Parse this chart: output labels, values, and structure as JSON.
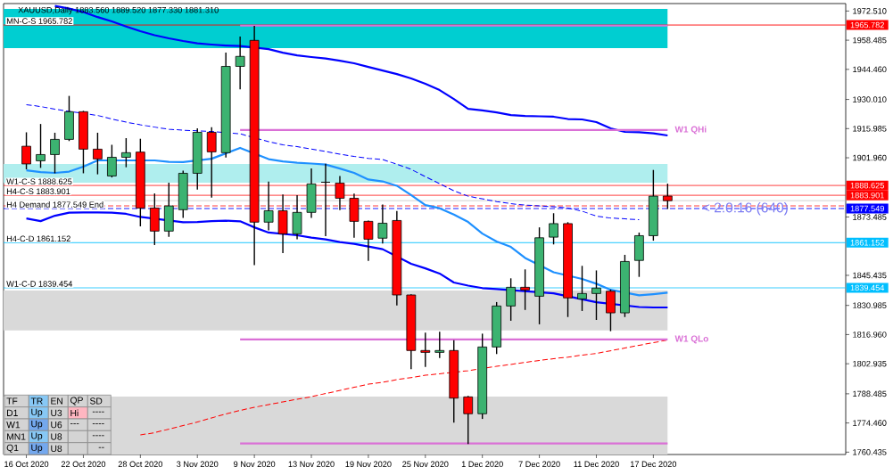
{
  "chart_data": {
    "type": "candlestick",
    "title": "XAUUSD,Daily 1883.560 1889.520 1877.330 1881.310",
    "categories": [
      "16 Oct 2020",
      null,
      null,
      null,
      "22 Oct 2020",
      null,
      null,
      null,
      "28 Oct 2020",
      null,
      null,
      null,
      "3 Nov 2020",
      null,
      null,
      null,
      "9 Nov 2020",
      null,
      null,
      null,
      "13 Nov 2020",
      null,
      null,
      null,
      "19 Nov 2020",
      null,
      null,
      null,
      "25 Nov 2020",
      null,
      null,
      null,
      "1 Dec 2020",
      null,
      null,
      null,
      "7 Dec 2020",
      null,
      null,
      null,
      "11 Dec 2020",
      null,
      null,
      null,
      "17 Dec 2020",
      null
    ],
    "ohlc": [
      [
        1907.5,
        1914.2,
        1896.4,
        1899.0
      ],
      [
        1900.5,
        1918.2,
        1897.1,
        1903.5
      ],
      [
        1903.5,
        1914.0,
        1894.5,
        1910.8
      ],
      [
        1910.8,
        1931.7,
        1910.0,
        1924.1
      ],
      [
        1924.1,
        1924.5,
        1894.5,
        1906.1
      ],
      [
        1906.1,
        1914.0,
        1894.0,
        1901.4
      ],
      [
        1893.2,
        1908.2,
        1892.5,
        1902.2
      ],
      [
        1902.2,
        1911.4,
        1897.4,
        1904.4
      ],
      [
        1904.7,
        1911.1,
        1869.0,
        1877.8
      ],
      [
        1877.8,
        1884.8,
        1860.0,
        1866.7
      ],
      [
        1866.7,
        1890.0,
        1864.0,
        1878.8
      ],
      [
        1877.0,
        1895.8,
        1873.1,
        1894.5
      ],
      [
        1894.5,
        1916.1,
        1886.7,
        1914.2
      ],
      [
        1914.2,
        1916.7,
        1882.8,
        1904.8
      ],
      [
        1904.4,
        1952.5,
        1902.1,
        1945.9
      ],
      [
        1945.9,
        1960.2,
        1934.9,
        1950.7
      ],
      [
        1958.4,
        1965.4,
        1850.3,
        1871.0
      ],
      [
        1871.0,
        1890.5,
        1867.1,
        1876.5
      ],
      [
        1876.5,
        1884.3,
        1856.1,
        1865.4
      ],
      [
        1865.4,
        1884.0,
        1862.8,
        1875.7
      ],
      [
        1875.7,
        1896.8,
        1873.1,
        1889.4
      ],
      [
        1890.2,
        1899.1,
        1864.3,
        1890.2
      ],
      [
        1889.8,
        1893.2,
        1876.8,
        1882.5
      ],
      [
        1882.5,
        1884.7,
        1863.5,
        1871.4
      ],
      [
        1871.4,
        1871.8,
        1852.4,
        1862.8
      ],
      [
        1863.3,
        1879.5,
        1860.7,
        1870.5
      ],
      [
        1871.8,
        1876.4,
        1831.0,
        1836.0
      ],
      [
        1836.0,
        1836.3,
        1800.3,
        1809.3
      ],
      [
        1809.3,
        1817.9,
        1801.4,
        1808.4
      ],
      [
        1808.4,
        1818.3,
        1805.7,
        1809.3
      ],
      [
        1809.3,
        1814.3,
        1774.6,
        1786.4
      ],
      [
        1787.0,
        1787.5,
        1764.3,
        1778.9
      ],
      [
        1778.9,
        1817.4,
        1776.4,
        1811.0
      ],
      [
        1811.0,
        1832.6,
        1807.6,
        1830.7
      ],
      [
        1830.7,
        1844.0,
        1823.6,
        1839.7
      ],
      [
        1839.7,
        1848.3,
        1828.8,
        1838.4
      ],
      [
        1835.4,
        1868.5,
        1821.9,
        1863.5
      ],
      [
        1863.8,
        1875.3,
        1860.3,
        1870.3
      ],
      [
        1870.3,
        1871.0,
        1825.4,
        1834.6
      ],
      [
        1834.1,
        1850.0,
        1828.3,
        1836.7
      ],
      [
        1836.7,
        1847.8,
        1824.0,
        1839.3
      ],
      [
        1837.8,
        1838.6,
        1818.6,
        1827.4
      ],
      [
        1827.4,
        1855.3,
        1825.4,
        1852.1
      ],
      [
        1852.6,
        1866.0,
        1844.7,
        1864.5
      ],
      [
        1864.5,
        1896.1,
        1862.1,
        1883.5
      ],
      [
        1883.56,
        1889.52,
        1877.33,
        1881.31
      ]
    ],
    "colors": [
      "#ff0000",
      "#3cb371",
      "#3cb371",
      "#3cb371",
      "#ff0000",
      "#ff0000",
      "#3cb371",
      "#3cb371",
      "#ff0000",
      "#ff0000",
      "#3cb371",
      "#3cb371",
      "#3cb371",
      "#ff0000",
      "#3cb371",
      "#3cb371",
      "#ff0000",
      "#3cb371",
      "#ff0000",
      "#3cb371",
      "#3cb371",
      "#000000",
      "#ff0000",
      "#ff0000",
      "#ff0000",
      "#3cb371",
      "#ff0000",
      "#ff0000",
      "#ff0000",
      "#3cb371",
      "#ff0000",
      "#ff0000",
      "#3cb371",
      "#3cb371",
      "#3cb371",
      "#ff0000",
      "#3cb371",
      "#3cb371",
      "#ff0000",
      "#3cb371",
      "#3cb371",
      "#ff0000",
      "#3cb371",
      "#3cb371",
      "#3cb371",
      "#ff0000"
    ],
    "ylim": [
      1759.3,
      1976.1
    ],
    "yticks": [
      {
        "value": 1972.51,
        "label": "1972.510"
      },
      1958.485,
      {
        "value": 1944.46,
        "label": "1944.460"
      },
      {
        "value": 1930.01,
        "label": "1930.010"
      },
      1915.985,
      {
        "value": 1901.96,
        "label": "1901.960"
      },
      1873.485,
      1845.435,
      1830.985,
      {
        "value": 1816.96,
        "label": "1816.960"
      },
      1802.935,
      1788.485,
      {
        "value": 1774.46,
        "label": "1774.460"
      },
      1760.435
    ],
    "series": [
      {
        "type": "line",
        "color": "#0000ff",
        "values": [
          null,
          null,
          1975.0,
          1973.7,
          1972.0,
          1969.6,
          1967.5,
          1965.1,
          1962.8,
          1960.9,
          1959.4,
          1958.1,
          1957.0,
          1956.4,
          1955.9,
          1955.7,
          null,
          1954.2,
          1952.5,
          1951.2,
          1950.4,
          1949.7,
          1948.6,
          1947.4,
          1945.6,
          1943.9,
          1942.2,
          1940.1,
          1937.5,
          1934.5,
          1930.2,
          1925.5,
          1924.7,
          1923.8,
          1922.5,
          1922.1,
          1921.9,
          1921.7,
          1920.6,
          1920.4,
          1919.1,
          1916.1,
          1914.4,
          1914.2,
          1913.7,
          1912.7
        ]
      },
      {
        "type": "line",
        "color": "#0000ff",
        "values": [
          1872.8,
          1871.5,
          1874.1,
          1875.6,
          1875.7,
          1875.7,
          1875.6,
          1875.0,
          1873.5,
          null,
          null,
          1871.0,
          1871.1,
          1871.5,
          1871.7,
          1871.4,
          1868.5,
          1866.0,
          null,
          1864.7,
          1863.6,
          1862.7,
          1861.4,
          1860.6,
          1859.3,
          1858.0,
          null,
          1851.0,
          1848.8,
          1846.3,
          1842.0,
          1840.5,
          1839.3,
          1838.8,
          null,
          null,
          null,
          1836.8,
          null,
          null,
          1832.5,
          null,
          null,
          1830.2,
          1830.0,
          1830.0
        ]
      },
      {
        "type": "line",
        "color": "#1e90ff",
        "values": [
          1895.9,
          1895.1,
          1894.7,
          1895.3,
          1897.7,
          1900.7,
          null,
          null,
          null,
          1900.7,
          1900.0,
          1899.9,
          null,
          1901.5,
          null,
          1906.7,
          null,
          1901.3,
          1900.2,
          1899.6,
          1899.2,
          1898.7,
          1896.8,
          1894.7,
          1891.5,
          1890.6,
          1888.5,
          1884.0,
          1879.2,
          1877.7,
          1874.7,
          1871.1,
          1865.5,
          1861.7,
          1859.1,
          1853.8,
          null,
          1846.9,
          null,
          1843.7,
          1841.4,
          1838.5,
          null,
          1835.8,
          1836.4,
          1837.1
        ]
      },
      {
        "type": "line",
        "color": "#0000ff",
        "line_style": "dashed",
        "values": [
          1927.5,
          1926.6,
          1925.3,
          null,
          null,
          1922.3,
          1920.6,
          1919.1,
          1917.8,
          1916.7,
          1915.7,
          1915.2,
          1914.9,
          1914.6,
          null,
          1913.5,
          null,
          1909.7,
          1908.2,
          1907.3,
          1906.2,
          1905.0,
          1903.7,
          1902.6,
          1901.7,
          1901.1,
          1898.9,
          1896.4,
          1892.9,
          1889.5,
          1886.1,
          1883.5,
          1882.2,
          1880.9,
          1879.9,
          1879.2,
          1878.8,
          1878.4,
          1877.8,
          1876.3,
          1873.9,
          1873.0,
          1872.6,
          1872.2,
          null,
          null
        ]
      },
      {
        "type": "line",
        "color": "#ff0000",
        "line_style": "dashed",
        "values": [
          null,
          null,
          null,
          null,
          null,
          null,
          null,
          null,
          1768.7,
          1769.8,
          1771.5,
          1773.2,
          1774.9,
          1776.9,
          1778.8,
          1780.5,
          1782.0,
          1783.3,
          1784.6,
          1785.9,
          1787.1,
          1788.6,
          1790.1,
          1791.6,
          1793.1,
          1794.0,
          1795.3,
          1796.3,
          1797.4,
          1798.1,
          null,
          1799.6,
          null,
          1801.7,
          1802.6,
          1803.6,
          1804.5,
          1805.4,
          1806.1,
          1807.1,
          1807.9,
          1809.2,
          1810.5,
          1811.8,
          1813.1,
          1814.3
        ]
      },
      {
        "type": "line",
        "color": "#da70d6",
        "values": [
          null,
          null,
          null,
          null,
          null,
          null,
          null,
          null,
          null,
          null,
          null,
          null,
          null,
          null,
          null,
          1965.5,
          1965.5,
          1965.5,
          1965.5,
          1965.5,
          1965.5,
          1965.5,
          1965.5,
          1965.5,
          1965.5,
          1965.5,
          1965.5,
          1965.5,
          1965.5,
          1965.5,
          1965.5,
          1965.5,
          1965.5,
          1965.5,
          1965.5,
          1965.5,
          1965.5,
          1965.5,
          1965.5,
          1965.5,
          1965.5,
          1965.5,
          1965.5,
          1965.5,
          1965.5,
          1965.5
        ]
      },
      {
        "type": "line",
        "name": "W1 QHi",
        "color": "#da70d6",
        "values": [
          null,
          null,
          null,
          null,
          null,
          null,
          null,
          null,
          null,
          null,
          null,
          null,
          null,
          null,
          null,
          1915.3,
          null,
          1915.3,
          1915.3,
          1915.3,
          1915.3,
          1915.3,
          1915.3,
          1915.3,
          1915.3,
          1915.3,
          1915.3,
          1915.3,
          1915.3,
          1915.3,
          1915.3,
          1915.3,
          1915.3,
          1915.3,
          1915.3,
          1915.3,
          1915.3,
          1915.3,
          1915.3,
          1915.3,
          1915.3,
          1915.3,
          1915.3,
          1915.3,
          1915.3,
          1915.3
        ]
      },
      {
        "type": "line",
        "name": "W1 QLo",
        "color": "#da70d6",
        "values": [
          null,
          null,
          null,
          null,
          null,
          null,
          null,
          null,
          null,
          null,
          null,
          null,
          null,
          null,
          null,
          1814.6,
          1814.6,
          1814.6,
          1814.6,
          1814.6,
          1814.6,
          1814.6,
          1814.6,
          1814.6,
          1814.6,
          1814.6,
          1814.6,
          null,
          1814.6,
          1814.6,
          1814.6,
          1814.6,
          1814.6,
          null,
          1814.6,
          1814.6,
          1814.6,
          1814.6,
          1814.6,
          1814.6,
          1814.6,
          1814.6,
          1814.6,
          1814.6,
          1814.6,
          1814.6
        ]
      },
      {
        "type": "line",
        "color": "#da70d6",
        "values": [
          null,
          null,
          null,
          null,
          null,
          null,
          null,
          null,
          null,
          null,
          null,
          null,
          null,
          null,
          null,
          1764.6,
          1764.6,
          1764.6,
          1764.6,
          1764.6,
          1764.6,
          1764.6,
          1764.6,
          1764.6,
          1764.6,
          1764.6,
          1764.6,
          1764.6,
          1764.6,
          1764.6,
          1764.6,
          1764.6,
          1764.6,
          1764.6,
          1764.6,
          1764.6,
          1764.6,
          1764.6,
          1764.6,
          1764.6,
          1764.6,
          1764.6,
          1764.6,
          1764.6,
          1764.6,
          1764.6
        ]
      }
    ],
    "ref_lines": [
      {
        "axis": "y",
        "value": 1965.782,
        "label": "MN-C-S 1965.782",
        "color": "#ff0000"
      },
      {
        "axis": "y",
        "value": 1888.625,
        "label": "W1-C-S 1888.625",
        "color": "#ff0000"
      },
      {
        "axis": "y",
        "value": 1883.901,
        "label": "H4-C-S 1883.901",
        "color": "#ff0000"
      },
      {
        "axis": "y",
        "value": 1881.31,
        "color": "#c0c0c0"
      },
      {
        "axis": "y",
        "value": 1878.8,
        "color": "#ff0000",
        "line_style": "dashed"
      },
      {
        "axis": "y",
        "value": 1877.549,
        "label": "H4 Demand 1877.549 End",
        "color": "#0000ff",
        "line_style": "dashed"
      },
      {
        "axis": "y",
        "value": 1861.152,
        "label": "H4-C-D 1861.152",
        "color": "#00bfff"
      },
      {
        "axis": "y",
        "value": 1839.454,
        "label": "W1-C-D 1839.454",
        "color": "#00bfff"
      }
    ],
    "bands": [
      {
        "axis": "y",
        "from": 1954.7,
        "to": 1973.5,
        "color": "#00ced1"
      },
      {
        "axis": "y",
        "from": 1890.0,
        "to": 1899.0,
        "color": "#afeeee"
      },
      {
        "axis": "y",
        "from": 1819.0,
        "to": 1838.1,
        "color": "#d9d9d9"
      },
      {
        "axis": "y",
        "from": 1759.3,
        "to": 1787.1,
        "color": "#d9d9d9"
      }
    ],
    "annotations": [
      "< 2:0:16 (640)",
      "1965.782",
      "1888.625",
      "1883.901",
      "1877.549",
      "1861.152",
      "1839.454",
      "TF",
      "TR",
      "EN",
      "QP",
      "SD",
      "D1",
      "Up",
      "U3",
      "Hi",
      "----",
      "W1",
      "Up",
      "U6",
      "---",
      "----",
      "MN1",
      "Up",
      "U8",
      "----",
      "Q1",
      "Up",
      "U8",
      "--"
    ]
  }
}
